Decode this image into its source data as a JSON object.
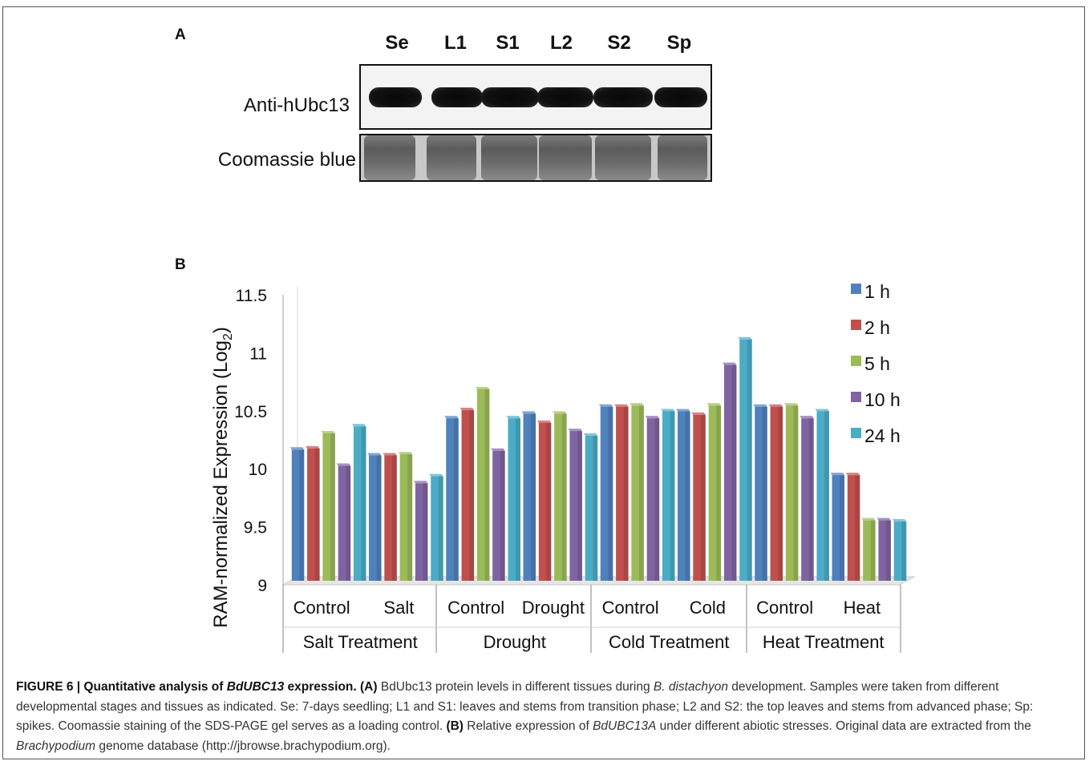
{
  "panel_a": {
    "label": "A",
    "lanes": [
      "Se",
      "L1",
      "S1",
      "L2",
      "S2",
      "Sp"
    ],
    "row_labels": [
      "Anti-hUbc13",
      "Coomassie blue"
    ]
  },
  "panel_b": {
    "label": "B"
  },
  "chart_data": {
    "type": "bar",
    "title": "",
    "ylabel_main": "RAM-normalized Expression (Log",
    "ylabel_sub": "2",
    "ylabel_end": ")",
    "ylim": [
      9,
      11.5
    ],
    "yticks": [
      "11.5",
      "11",
      "10.5",
      "10",
      "9.5",
      "9"
    ],
    "ytick_values": [
      11.5,
      11,
      10.5,
      10,
      9.5,
      9
    ],
    "categories": [
      "Control",
      "Salt",
      "Control",
      "Drought",
      "Control",
      "Cold",
      "Control",
      "Heat"
    ],
    "groups": [
      "Salt Treatment",
      "Drought",
      "Cold Treatment",
      "Heat Treatment"
    ],
    "legend_position": "top-right",
    "grid": false,
    "series": [
      {
        "name": "1 h",
        "color": "#4f81bd",
        "values": [
          10.11,
          10.06,
          10.38,
          10.42,
          10.48,
          10.44,
          10.48,
          9.89
        ]
      },
      {
        "name": "2 h",
        "color": "#c0504d",
        "values": [
          10.12,
          10.06,
          10.45,
          10.34,
          10.48,
          10.41,
          10.48,
          9.89
        ]
      },
      {
        "name": "5 h",
        "color": "#9bbb59",
        "values": [
          10.25,
          10.07,
          10.63,
          10.42,
          10.49,
          10.49,
          10.49,
          9.5
        ]
      },
      {
        "name": "10 h",
        "color": "#8064a2",
        "values": [
          9.97,
          9.82,
          10.1,
          10.27,
          10.38,
          10.84,
          10.38,
          9.5
        ]
      },
      {
        "name": "24 h",
        "color": "#4bacc6",
        "values": [
          10.31,
          9.88,
          10.38,
          10.23,
          10.44,
          11.06,
          10.44,
          9.49
        ]
      }
    ]
  },
  "caption": {
    "fig": "FIGURE 6 | Quantitative analysis of ",
    "gene": "BdUBC13",
    "fig_end": " expression.",
    "a_tag": "(A)",
    "t1": " BdUbc13 protein levels in different tissues during ",
    "species": "B. distachyon",
    "t2": " development. Samples were taken from different developmental stages and tissues as indicated. Se: 7-days seedling; L1 and S1: leaves and stems from transition phase; L2 and S2: the top leaves and stems from advanced phase; Sp: spikes. Coomassie staining of the SDS-PAGE gel serves as a loading control. ",
    "b_tag": "(B)",
    "t3": " Relative expression of ",
    "gene2": "BdUBC13A",
    "t4": " under different abiotic stresses. Original data are extracted from the ",
    "genus": "Brachypodium",
    "t5": " genome database (http://jbrowse.brachypodium.org)."
  }
}
